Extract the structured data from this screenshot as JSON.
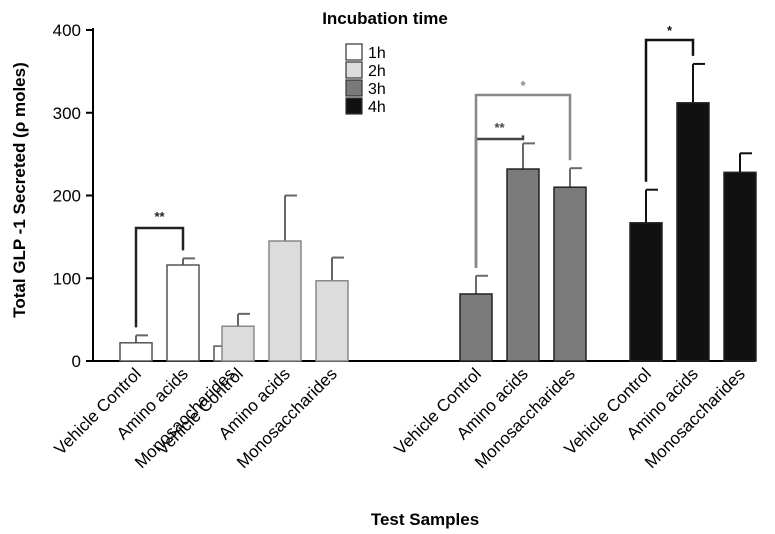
{
  "chart_data": {
    "type": "bar",
    "ylabel": "Total GLP -1 Secreted (ρ moles)",
    "xlabel": "Test Samples",
    "ylim": [
      0,
      400
    ],
    "yticks": [
      0,
      100,
      200,
      300,
      400
    ],
    "legend": {
      "title": "Incubation time",
      "placement": "top-center",
      "entries": [
        "1h",
        "2h",
        "3h",
        "4h"
      ]
    },
    "colors": {
      "1h": "#ffffff",
      "2h": "#dcdcdc",
      "3h": "#7a7a7a",
      "4h": "#111111"
    },
    "categories": [
      "Vehicle Control",
      "Amino acids",
      "Monosaccharides"
    ],
    "series": [
      {
        "name": "1h",
        "values": [
          22,
          116,
          18
        ],
        "errors": [
          9,
          8,
          5
        ]
      },
      {
        "name": "2h",
        "values": [
          42,
          145,
          97
        ],
        "errors": [
          15,
          55,
          28
        ]
      },
      {
        "name": "3h",
        "values": [
          81,
          232,
          210
        ],
        "errors": [
          22,
          31,
          23
        ]
      },
      {
        "name": "4h",
        "values": [
          167,
          312,
          228
        ],
        "errors": [
          40,
          47,
          23
        ]
      }
    ],
    "significance": [
      {
        "group": "1h",
        "from": 0,
        "to": 1,
        "label": "**",
        "color": "#222222"
      },
      {
        "group": "3h",
        "from": 0,
        "to": 1,
        "label": "**",
        "color": "#444444"
      },
      {
        "group": "3h",
        "from": 0,
        "to": 2,
        "label": "*",
        "color": "#888888"
      },
      {
        "group": "4h",
        "from": 0,
        "to": 1,
        "label": "*",
        "color": "#111111"
      }
    ]
  }
}
